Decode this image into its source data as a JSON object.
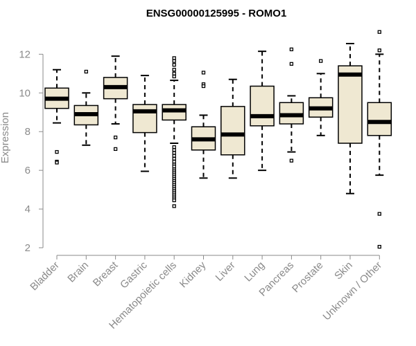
{
  "chart_data": {
    "type": "boxplot",
    "title": "ENSG00000125995 - ROMO1",
    "xlabel": "",
    "ylabel": "Expression",
    "ylim": [
      2,
      13.3
    ],
    "yticks": [
      2,
      4,
      6,
      8,
      10,
      12
    ],
    "box_fill": "#efe8d2",
    "box_stroke": "#000000",
    "axis_color": "#8a8a8a",
    "categories": [
      "Bladder",
      "Brain",
      "Breast",
      "Gastric",
      "Hematopoietic cells",
      "Kidney",
      "Liver",
      "Lung",
      "Pancreas",
      "Prostate",
      "Skin",
      "Unknown / Other"
    ],
    "boxes": [
      {
        "min": 8.45,
        "q1": 9.2,
        "median": 9.7,
        "q3": 10.25,
        "max": 11.2,
        "outliers": [
          6.95,
          6.45,
          6.4
        ]
      },
      {
        "min": 7.3,
        "q1": 8.35,
        "median": 8.9,
        "q3": 9.35,
        "max": 10.0,
        "outliers": [
          11.1
        ]
      },
      {
        "min": 8.4,
        "q1": 9.7,
        "median": 10.3,
        "q3": 10.8,
        "max": 11.9,
        "outliers": [
          7.7,
          7.1
        ]
      },
      {
        "min": 5.95,
        "q1": 7.95,
        "median": 9.05,
        "q3": 9.4,
        "max": 10.9,
        "outliers": []
      },
      {
        "min": 7.4,
        "q1": 8.6,
        "median": 9.1,
        "q3": 9.4,
        "max": 10.65,
        "outliers": [
          11.8,
          11.65,
          11.45,
          11.2,
          11.0,
          10.85,
          7.2,
          7.05,
          6.9,
          6.75,
          6.6,
          6.45,
          6.3,
          6.2,
          6.05,
          5.95,
          5.85,
          5.75,
          5.65,
          5.55,
          5.45,
          5.35,
          5.25,
          5.15,
          5.05,
          4.95,
          4.85,
          4.75,
          4.65,
          4.55,
          4.45,
          4.15
        ]
      },
      {
        "min": 5.6,
        "q1": 7.05,
        "median": 7.6,
        "q3": 8.25,
        "max": 8.85,
        "outliers": [
          11.05,
          10.45,
          10.35
        ]
      },
      {
        "min": 5.6,
        "q1": 6.8,
        "median": 7.85,
        "q3": 9.3,
        "max": 10.7,
        "outliers": []
      },
      {
        "min": 6.0,
        "q1": 8.3,
        "median": 8.8,
        "q3": 10.35,
        "max": 12.15,
        "outliers": []
      },
      {
        "min": 6.95,
        "q1": 8.4,
        "median": 8.85,
        "q3": 9.5,
        "max": 9.85,
        "outliers": [
          12.25,
          11.5,
          6.5
        ]
      },
      {
        "min": 7.8,
        "q1": 8.75,
        "median": 9.2,
        "q3": 9.75,
        "max": 11.0,
        "outliers": [
          11.65
        ]
      },
      {
        "min": 4.8,
        "q1": 7.4,
        "median": 10.95,
        "q3": 11.4,
        "max": 12.55,
        "outliers": []
      },
      {
        "min": 5.75,
        "q1": 7.8,
        "median": 8.5,
        "q3": 9.5,
        "max": 12.0,
        "outliers": [
          13.15,
          12.2,
          3.75,
          2.05
        ]
      }
    ]
  }
}
